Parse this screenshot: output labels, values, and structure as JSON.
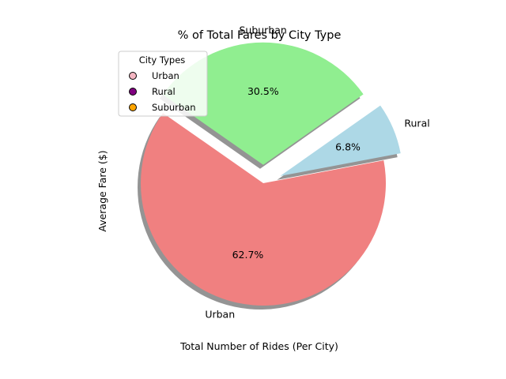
{
  "chart_data": {
    "type": "pie",
    "title": "% of Total Fares by City Type",
    "xlabel": "Total Number of Rides (Per City)",
    "ylabel": "Average Fare ($)",
    "slices": [
      {
        "label": "Urban",
        "value": 62.7,
        "pct_label": "62.7%",
        "color": "#f08080",
        "explode": 0.0
      },
      {
        "label": "Rural",
        "value": 6.8,
        "pct_label": "6.8%",
        "color": "#add8e6",
        "explode": 0.15
      },
      {
        "label": "Suburban",
        "value": 30.5,
        "pct_label": "30.5%",
        "color": "#90ee90",
        "explode": 0.15
      }
    ],
    "shadow": true,
    "legend": {
      "title": "City Types",
      "placement": "upper-left",
      "entries": [
        {
          "label": "Urban",
          "color": "#f4b6c2"
        },
        {
          "label": "Rural",
          "color": "#800080"
        },
        {
          "label": "Suburban",
          "color": "#ffa500"
        }
      ]
    }
  }
}
